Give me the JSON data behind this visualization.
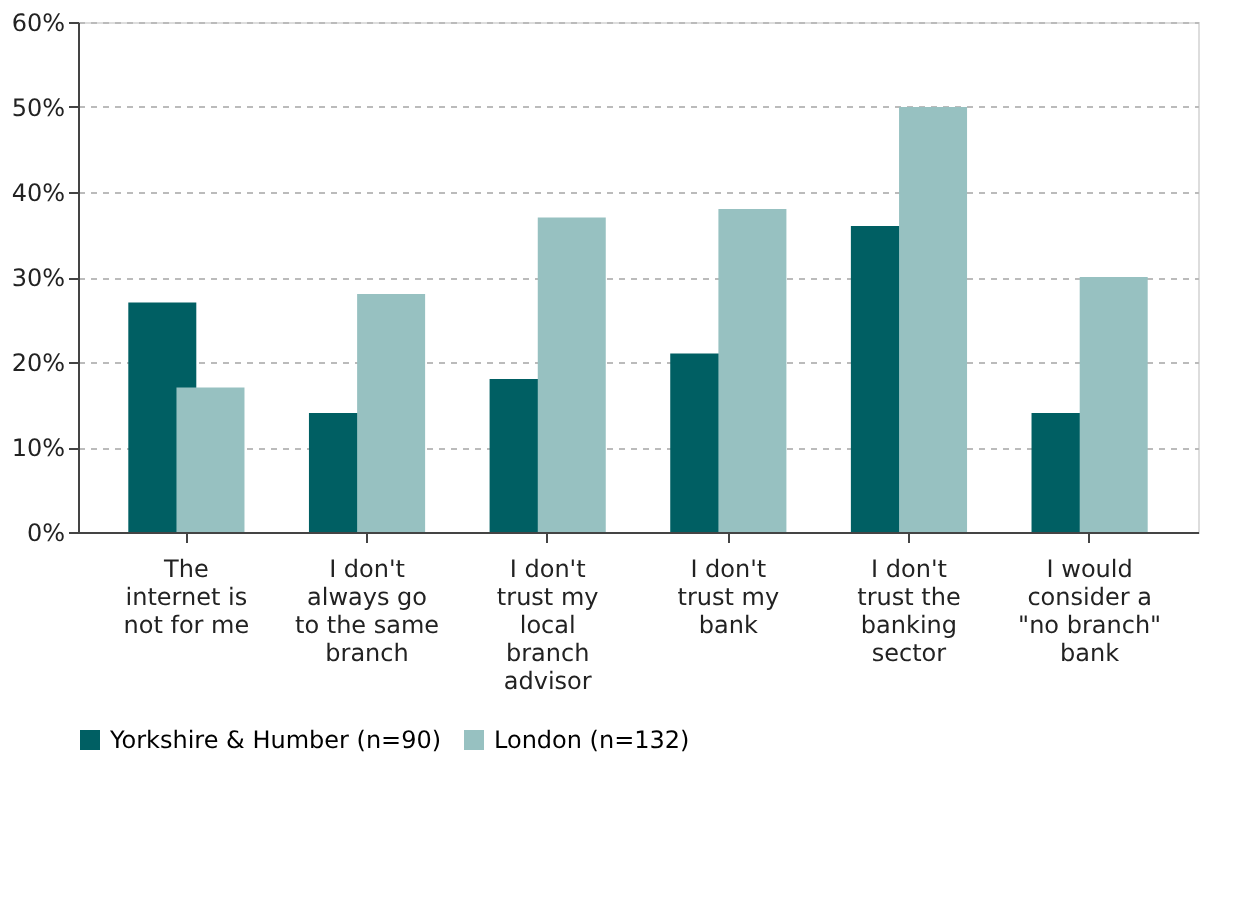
{
  "chart_data": {
    "type": "bar",
    "categories": [
      "The internet is not for me",
      "I don't always go to the same branch",
      "I don't trust my local branch advisor",
      "I don't trust my bank",
      "I don't trust the banking sector",
      "I would consider a \"no branch\" bank"
    ],
    "series": [
      {
        "name": "Yorkshire & Humber (n=90)",
        "color": "#005f63",
        "values": [
          27,
          14,
          18,
          21,
          36,
          14
        ]
      },
      {
        "name": "London (n=132)",
        "color": "#97c1c1",
        "values": [
          17,
          28,
          37,
          38,
          50,
          30
        ]
      }
    ],
    "ylim": [
      0,
      60
    ],
    "yticks": [
      {
        "value": 0,
        "label": "0%"
      },
      {
        "value": 10,
        "label": "10%"
      },
      {
        "value": 20,
        "label": "20%"
      },
      {
        "value": 30,
        "label": "30%"
      },
      {
        "value": 40,
        "label": "40%"
      },
      {
        "value": 50,
        "label": "50%"
      },
      {
        "value": 60,
        "label": "60%"
      }
    ],
    "grid": "y",
    "legend": "bottom"
  }
}
